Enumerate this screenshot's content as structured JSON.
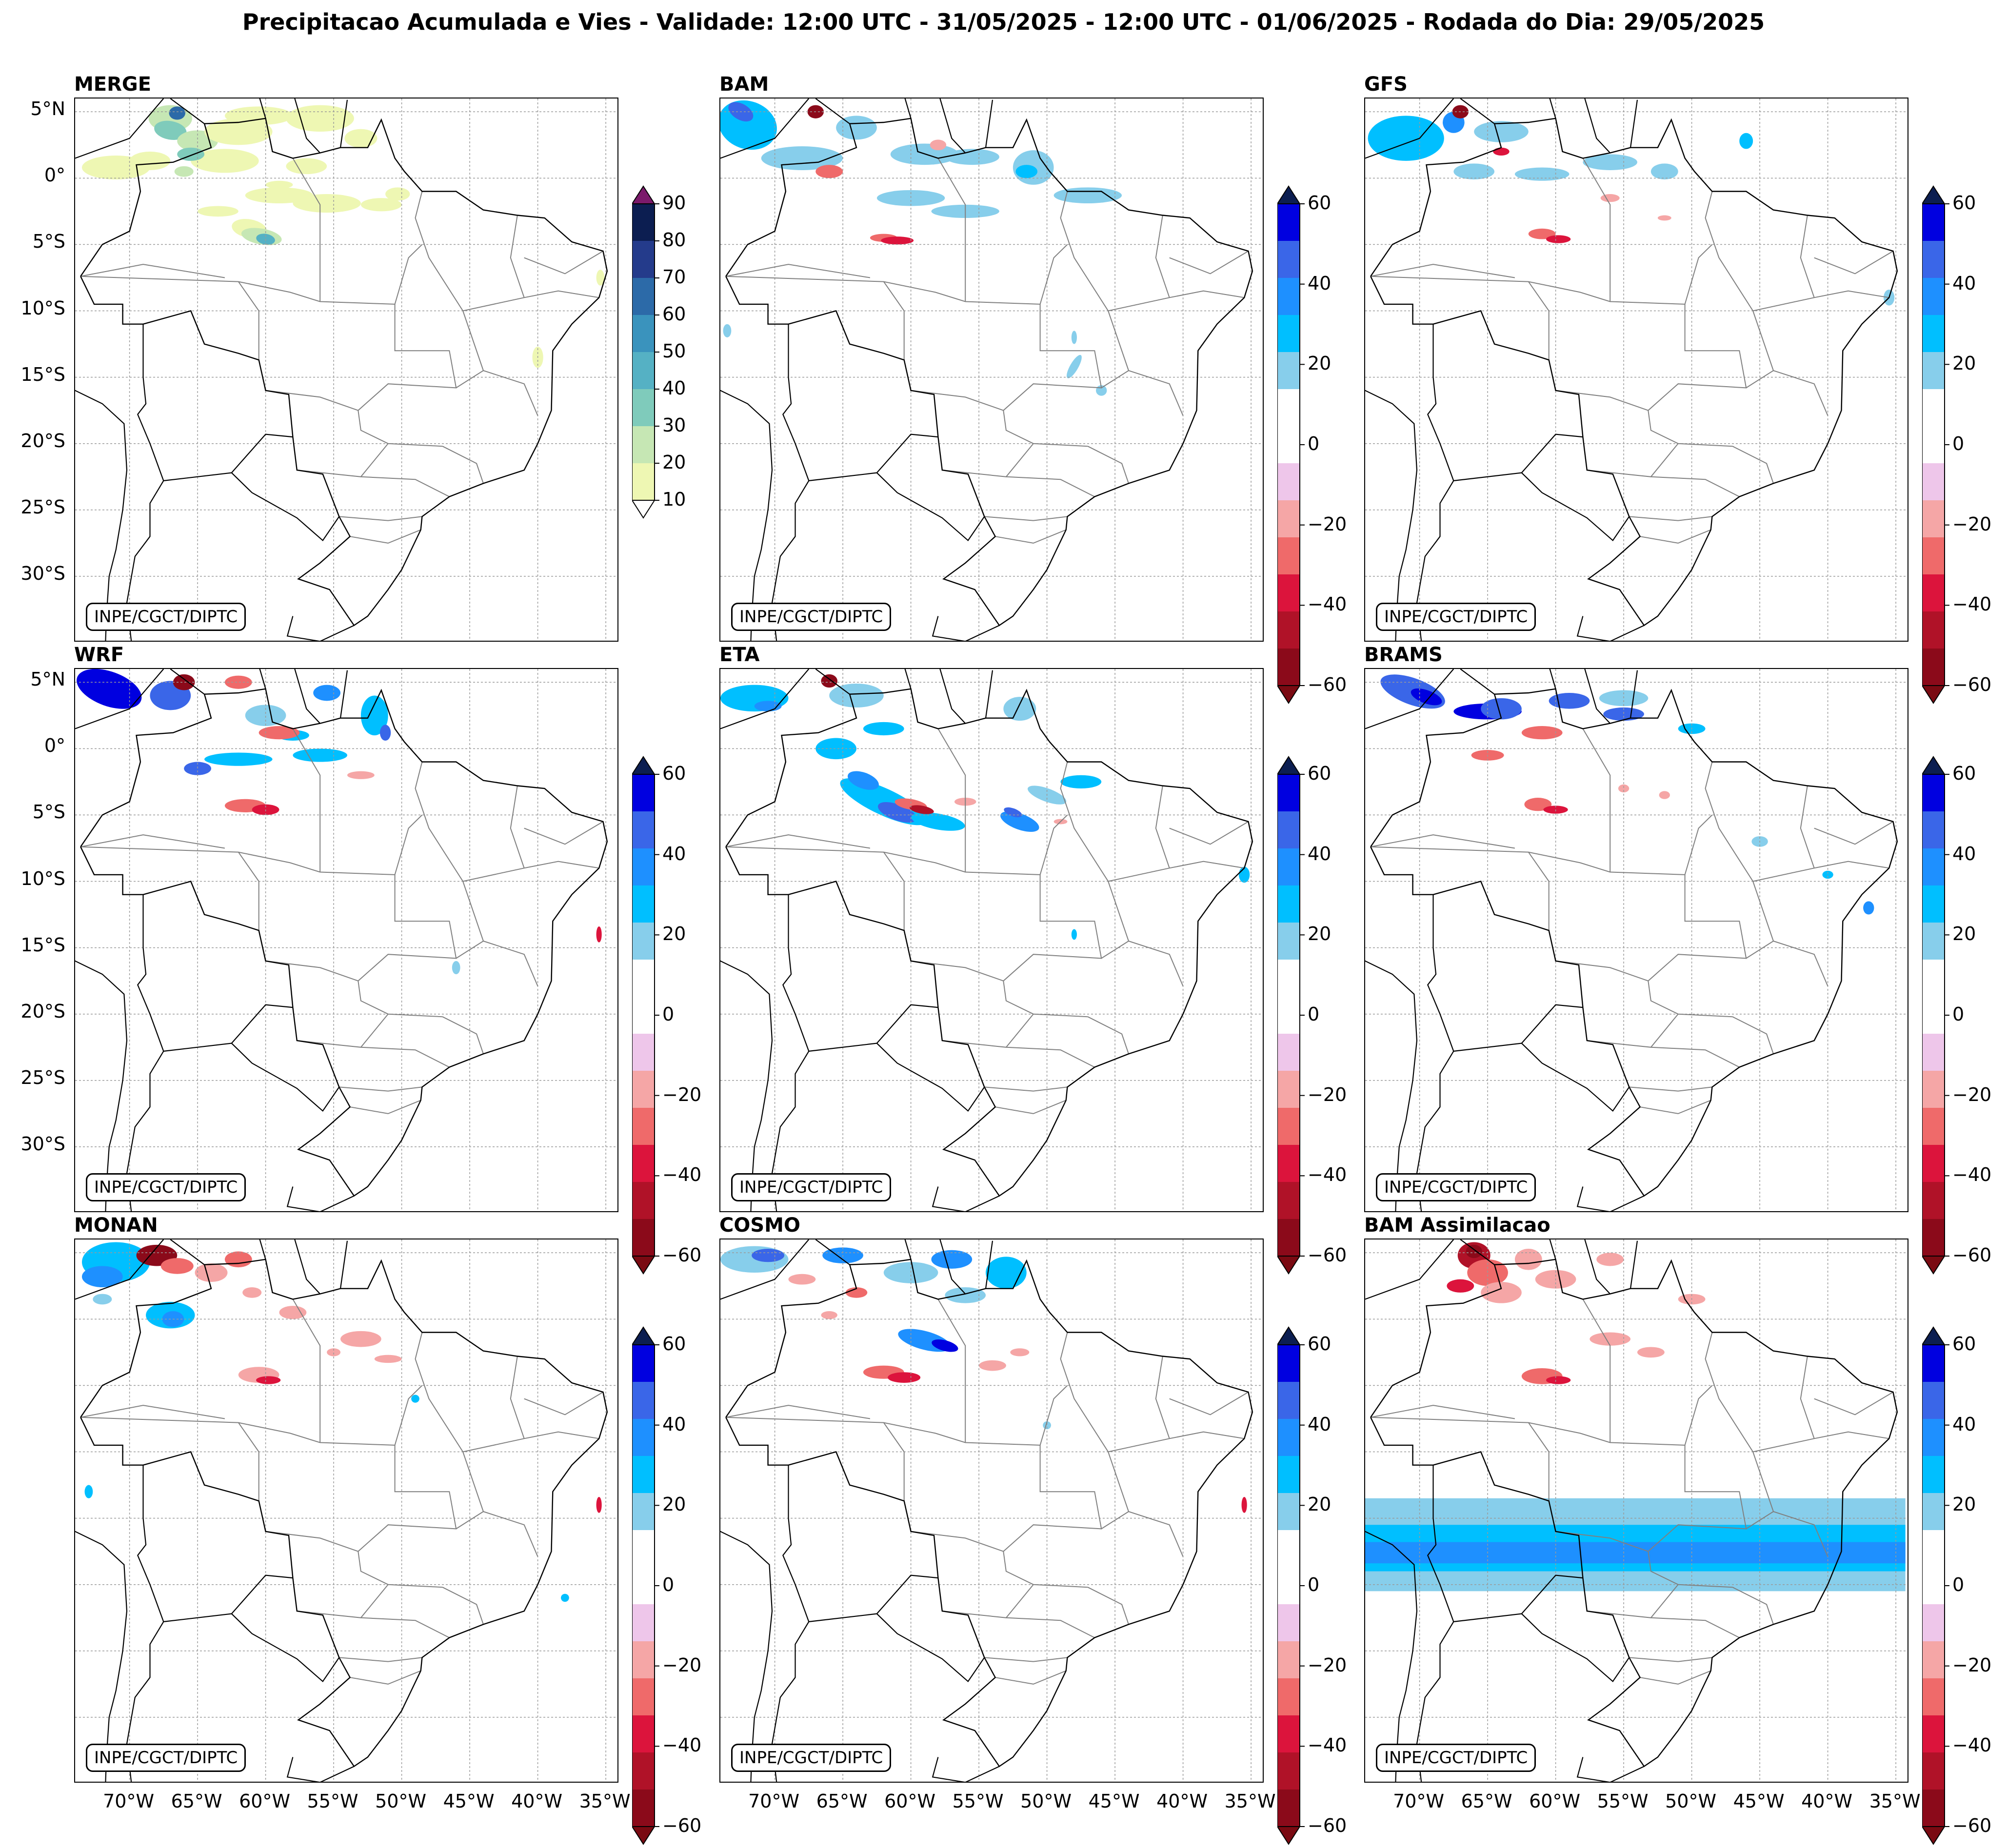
{
  "title": "Precipitacao Acumulada e Vies - Validade: 12:00 UTC - 31/05/2025 - 12:00 UTC - 01/06/2025 - Rodada do Dia: 29/05/2025",
  "credit": "INPE/CGCT/DIPTC",
  "lat_labels": [
    "5°N",
    "0°",
    "5°S",
    "10°S",
    "15°S",
    "20°S",
    "25°S",
    "30°S"
  ],
  "lon_labels": [
    "70°W",
    "65°W",
    "60°W",
    "55°W",
    "50°W",
    "45°W",
    "40°W",
    "35°W"
  ],
  "panels": [
    {
      "name": "MERGE",
      "type": "precip"
    },
    {
      "name": "BAM",
      "type": "bias"
    },
    {
      "name": "GFS",
      "type": "bias"
    },
    {
      "name": "WRF",
      "type": "bias"
    },
    {
      "name": "ETA",
      "type": "bias"
    },
    {
      "name": "BRAMS",
      "type": "bias"
    },
    {
      "name": "MONAN",
      "type": "bias"
    },
    {
      "name": "COSMO",
      "type": "bias"
    },
    {
      "name": "BAM Assimilacao",
      "type": "bias"
    }
  ],
  "colorbars": {
    "precip": {
      "ticks": [
        "90",
        "80",
        "70",
        "60",
        "50",
        "40",
        "30",
        "20",
        "10"
      ],
      "colors": [
        "#0c1e51",
        "#243b8b",
        "#2c6aa8",
        "#3a93bd",
        "#55b1c4",
        "#7fcbbb",
        "#c6e7b4",
        "#eef7b3"
      ],
      "over": "#7b1a6b",
      "under": "#ffffff"
    },
    "bias": {
      "ticks": [
        "60",
        "40",
        "20",
        "0",
        "−20",
        "−40",
        "−60"
      ],
      "colors": [
        "#0000e0",
        "#3a66e8",
        "#1e90ff",
        "#00bfff",
        "#87ceeb",
        "#ffffff",
        "#ffffff",
        "#eec6ea",
        "#f5a6a6",
        "#ef6a6a",
        "#dc143c",
        "#b01228",
        "#8b0a1a"
      ],
      "over": "#0c1e51",
      "under": "#7a0a12"
    }
  }
}
